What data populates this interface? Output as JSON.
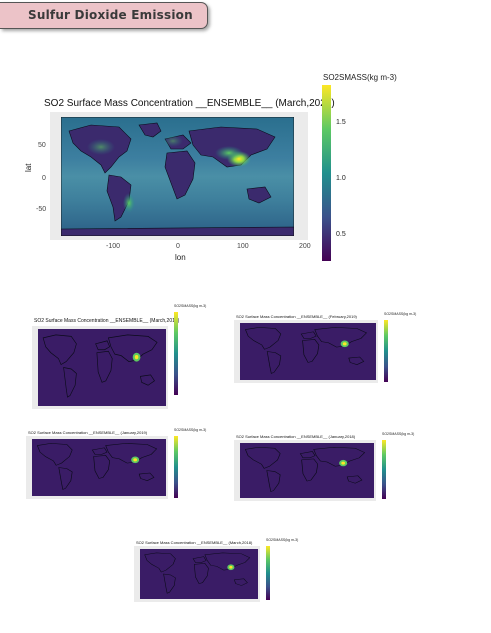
{
  "header": {
    "title": "Sulfur Dioxide Emission"
  },
  "main_plot": {
    "title": "SO2 Surface Mass Concentration __ENSEMBLE__ (March,2020)",
    "xlabel": "lon",
    "ylabel": "lat",
    "x_ticks": [
      "-100",
      "0",
      "100",
      "200"
    ],
    "y_ticks": [
      "50",
      "0",
      "-50"
    ],
    "colorbar_title": "SO2SMASS(kg m-3)",
    "colorbar_ticks": [
      "1.5",
      "1.0",
      "0.5"
    ]
  },
  "thumbnails": [
    {
      "title": "SO2 Surface Mass Concentration __ENSEMBLE__ (March,2019)",
      "colorbar_title": "SO2SMASS(kg m-3)"
    },
    {
      "title": "SO2 Surface Mass Concentration __ENSEMBLE__ (February,2019)",
      "colorbar_title": "SO2SMASS(kg m-3)"
    },
    {
      "title": "SO2 Surface Mass Concentration __ENSEMBLE__ (January,2019)",
      "colorbar_title": "SO2SMASS(kg m-3)"
    },
    {
      "title": "SO2 Surface Mass Concentration __ENSEMBLE__ (January,2018)",
      "colorbar_title": "SO2SMASS(kg m-3)"
    },
    {
      "title": "SO2 Surface Mass Concentration __ENSEMBLE__ (March,2018)",
      "colorbar_title": "SO2SMASS(kg m-3)"
    }
  ],
  "colors": {
    "viridis_low": "#440154",
    "viridis_high": "#fde725",
    "ocean": "#2f6f8e",
    "land": "#3a1f6a"
  }
}
